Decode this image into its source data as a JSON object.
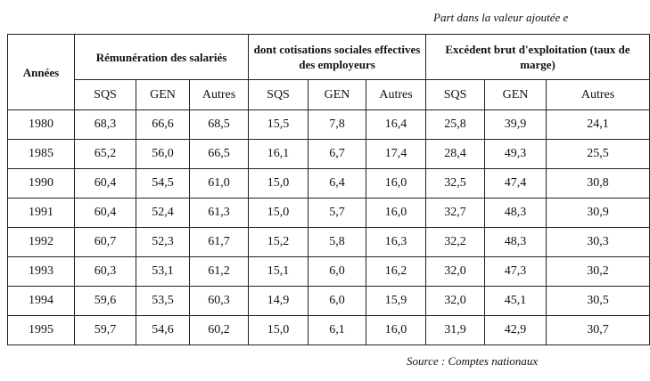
{
  "header": {
    "note": "Part dans la valeur ajoutée e"
  },
  "table": {
    "group_headers": [
      "Années",
      "Rémunération des salariés",
      "dont cotisations sociales effectives des employeurs",
      "Excédent brut d'exploitation (taux de marge)"
    ],
    "sub_headers": [
      "SQS",
      "GEN",
      "Autres",
      "SQS",
      "GEN",
      "Autres",
      "SQS",
      "GEN",
      "Autres"
    ],
    "rows": [
      [
        "1980",
        "68,3",
        "66,6",
        "68,5",
        "15,5",
        "7,8",
        "16,4",
        "25,8",
        "39,9",
        "24,1"
      ],
      [
        "1985",
        "65,2",
        "56,0",
        "66,5",
        "16,1",
        "6,7",
        "17,4",
        "28,4",
        "49,3",
        "25,5"
      ],
      [
        "1990",
        "60,4",
        "54,5",
        "61,0",
        "15,0",
        "6,4",
        "16,0",
        "32,5",
        "47,4",
        "30,8"
      ],
      [
        "1991",
        "60,4",
        "52,4",
        "61,3",
        "15,0",
        "5,7",
        "16,0",
        "32,7",
        "48,3",
        "30,9"
      ],
      [
        "1992",
        "60,7",
        "52,3",
        "61,7",
        "15,2",
        "5,8",
        "16,3",
        "32,2",
        "48,3",
        "30,3"
      ],
      [
        "1993",
        "60,3",
        "53,1",
        "61,2",
        "15,1",
        "6,0",
        "16,2",
        "32,0",
        "47,3",
        "30,2"
      ],
      [
        "1994",
        "59,6",
        "53,5",
        "60,3",
        "14,9",
        "6,0",
        "15,9",
        "32,0",
        "45,1",
        "30,5"
      ],
      [
        "1995",
        "59,7",
        "54,6",
        "60,2",
        "15,0",
        "6,1",
        "16,0",
        "31,9",
        "42,9",
        "30,7"
      ]
    ]
  },
  "footer": {
    "source": "Source : Comptes nationaux"
  }
}
